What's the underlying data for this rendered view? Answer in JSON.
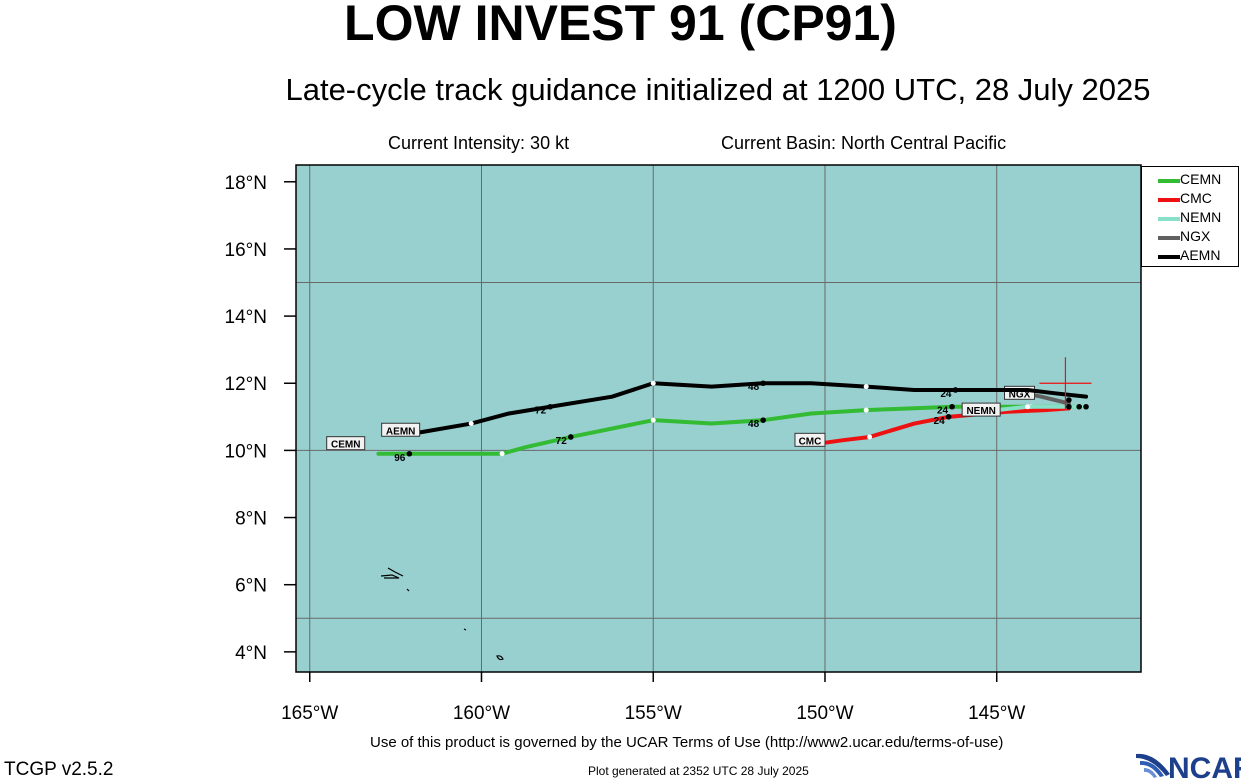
{
  "title": "LOW INVEST 91 (CP91)",
  "subtitle": "Late-cycle track guidance initialized at 1200 UTC, 28 July 2025",
  "current_intensity": "Current Intensity: 30 kt",
  "current_basin": "Current Basin: North Central Pacific",
  "terms": "Use of this product is governed by the UCAR Terms of Use (http://www2.ucar.edu/terms-of-use)",
  "generated": "Plot generated at 2352 UTC   28 July 2025",
  "version": "TCGP v2.5.2",
  "logo_text": "NCAR",
  "colors": {
    "ocean": "#98cfcf",
    "grid": "#6a6a6a",
    "CEMN": "#33bb33",
    "CMC": "#ee1111",
    "NEMN": "#88e0c8",
    "NGX": "#606060",
    "AEMN": "#000000",
    "center": "#ee1111"
  },
  "map": {
    "lon_range": [
      -165.4,
      -140.8
    ],
    "lat_range": [
      3.4,
      18.5
    ],
    "lon_ticks": [
      {
        "value": -165,
        "label": "165°W"
      },
      {
        "value": -160,
        "label": "160°W"
      },
      {
        "value": -155,
        "label": "155°W"
      },
      {
        "value": -150,
        "label": "150°W"
      },
      {
        "value": -145,
        "label": "145°W"
      }
    ],
    "lat_ticks": [
      {
        "value": 4,
        "label": "4°N"
      },
      {
        "value": 6,
        "label": "6°N"
      },
      {
        "value": 8,
        "label": "8°N"
      },
      {
        "value": 10,
        "label": "10°N"
      },
      {
        "value": 12,
        "label": "12°N"
      },
      {
        "value": 14,
        "label": "14°N"
      },
      {
        "value": 16,
        "label": "16°N"
      },
      {
        "value": 18,
        "label": "18°N"
      }
    ],
    "gridlines": {
      "lon": [
        -165,
        -160,
        -155,
        -150,
        -145
      ],
      "lat": [
        5,
        10,
        15
      ]
    },
    "current_position": {
      "lon": -143.0,
      "lat": 12.0
    },
    "tracks": [
      {
        "name": "CEMN",
        "label": "CEMN",
        "points": [
          [
            -142.7,
            11.3
          ],
          [
            -143.4,
            11.3
          ],
          [
            -144.7,
            11.3
          ],
          [
            -146.3,
            11.3
          ],
          [
            -148.8,
            11.2
          ],
          [
            -150.4,
            11.1
          ],
          [
            -151.8,
            10.9
          ],
          [
            -153.3,
            10.8
          ],
          [
            -155.0,
            10.9
          ],
          [
            -157.4,
            10.4
          ],
          [
            -158.7,
            10.1
          ],
          [
            -159.4,
            9.9
          ],
          [
            -162.1,
            9.9
          ],
          [
            -163.0,
            9.9
          ]
        ],
        "dots": [
          {
            "lon": -146.3,
            "lat": 11.3,
            "label": "24"
          },
          {
            "lon": -151.8,
            "lat": 10.9,
            "label": "48"
          },
          {
            "lon": -157.4,
            "lat": 10.4,
            "label": "72"
          },
          {
            "lon": -162.1,
            "lat": 9.9,
            "label": "96"
          }
        ],
        "mids": [
          [
            -144.0,
            11.3
          ],
          [
            -148.8,
            11.2
          ],
          [
            -155.0,
            10.9
          ],
          [
            -159.4,
            9.9
          ]
        ],
        "tag": {
          "lon": -163.4,
          "lat": 10.2
        }
      },
      {
        "name": "CMC",
        "label": "CMC",
        "points": [
          [
            -142.9,
            11.25
          ],
          [
            -143.6,
            11.2
          ],
          [
            -144.7,
            11.15
          ],
          [
            -146.4,
            11.0
          ],
          [
            -147.4,
            10.8
          ],
          [
            -148.7,
            10.4
          ],
          [
            -149.5,
            10.3
          ],
          [
            -150.2,
            10.2
          ]
        ],
        "dots": [
          {
            "lon": -146.4,
            "lat": 11.0,
            "label": "24"
          }
        ],
        "mids": [
          [
            -148.7,
            10.4
          ]
        ],
        "tag": {
          "lon": -150.0,
          "lat": 10.3
        }
      },
      {
        "name": "NEMN",
        "label": "NEMN",
        "points": [
          [
            -142.5,
            11.3
          ],
          [
            -143.3,
            11.3
          ],
          [
            -144.1,
            11.3
          ],
          [
            -145.0,
            11.2
          ]
        ],
        "dots": [],
        "mids": [
          [
            -144.1,
            11.3
          ]
        ],
        "tag": {
          "lon": -144.9,
          "lat": 11.2
        }
      },
      {
        "name": "NGX",
        "label": "NGX",
        "points": [
          [
            -142.9,
            11.4
          ],
          [
            -143.7,
            11.6
          ],
          [
            -144.2,
            11.7
          ]
        ],
        "dots": [
          {
            "lon": -142.9,
            "lat": 11.5,
            "label": ""
          }
        ],
        "mids": [],
        "tag": {
          "lon": -143.9,
          "lat": 11.7
        }
      },
      {
        "name": "AEMN",
        "label": "AEMN",
        "points": [
          [
            -142.4,
            11.6
          ],
          [
            -143.3,
            11.7
          ],
          [
            -144.1,
            11.8
          ],
          [
            -146.3,
            11.8
          ],
          [
            -147.4,
            11.8
          ],
          [
            -148.8,
            11.9
          ],
          [
            -150.4,
            12.0
          ],
          [
            -151.8,
            12.0
          ],
          [
            -153.3,
            11.9
          ],
          [
            -155.0,
            12.0
          ],
          [
            -156.2,
            11.6
          ],
          [
            -158.0,
            11.3
          ],
          [
            -159.2,
            11.1
          ],
          [
            -160.3,
            10.8
          ],
          [
            -162.0,
            10.5
          ]
        ],
        "dots": [
          {
            "lon": -146.2,
            "lat": 11.8,
            "label": "24"
          },
          {
            "lon": -151.8,
            "lat": 12.0,
            "label": "48"
          },
          {
            "lon": -158.0,
            "lat": 11.3,
            "label": "72"
          }
        ],
        "mids": [
          [
            -148.8,
            11.9
          ],
          [
            -155.0,
            12.0
          ],
          [
            -160.3,
            10.8
          ]
        ],
        "tag": {
          "lon": -161.8,
          "lat": 10.6
        }
      }
    ],
    "track_starts": [
      [
        -142.4,
        11.3
      ],
      [
        -142.6,
        11.3
      ],
      [
        -142.9,
        11.3
      ]
    ]
  },
  "legend": [
    {
      "name": "CEMN",
      "label": "CEMN"
    },
    {
      "name": "CMC",
      "label": "CMC"
    },
    {
      "name": "NEMN",
      "label": "NEMN"
    },
    {
      "name": "NGX",
      "label": "NGX"
    },
    {
      "name": "AEMN",
      "label": "AEMN"
    }
  ]
}
